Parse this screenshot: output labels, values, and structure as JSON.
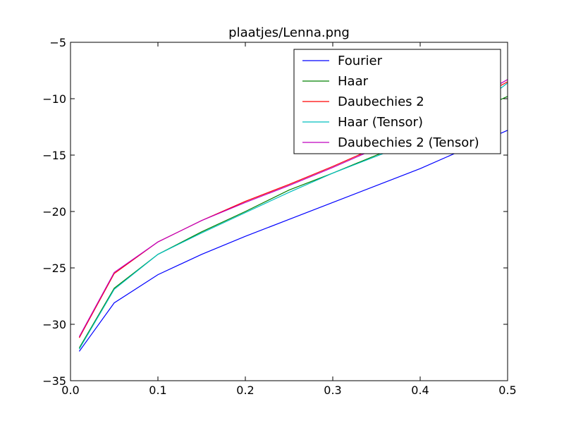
{
  "chart_data": {
    "type": "line",
    "title": "plaatjes/Lenna.png",
    "xlabel": "",
    "ylabel": "",
    "xlim": [
      0.0,
      0.5
    ],
    "ylim": [
      -35,
      -5
    ],
    "xticks": [
      0.0,
      0.1,
      0.2,
      0.3,
      0.4,
      0.5
    ],
    "xtick_labels": [
      "0.0",
      "0.1",
      "0.2",
      "0.3",
      "0.4",
      "0.5"
    ],
    "yticks": [
      -35,
      -30,
      -25,
      -20,
      -15,
      -10,
      -5
    ],
    "ytick_labels": [
      "−35",
      "−30",
      "−25",
      "−20",
      "−15",
      "−10",
      "−5"
    ],
    "grid": false,
    "legend_position": "top-right",
    "x": [
      0.01,
      0.05,
      0.1,
      0.15,
      0.2,
      0.25,
      0.3,
      0.35,
      0.4,
      0.45,
      0.5
    ],
    "series": [
      {
        "name": "Fourier",
        "color": "#0000ff",
        "values": [
          -32.4,
          -28.1,
          -25.6,
          -23.8,
          -22.2,
          -20.7,
          -19.2,
          -17.7,
          -16.2,
          -14.5,
          -12.8
        ]
      },
      {
        "name": "Haar",
        "color": "#008000",
        "values": [
          -32.1,
          -26.8,
          -23.8,
          -21.8,
          -20.0,
          -18.1,
          -16.6,
          -15.0,
          -13.5,
          -11.5,
          -9.8
        ]
      },
      {
        "name": "Daubechies 2",
        "color": "#ff0000",
        "values": [
          -31.2,
          -25.5,
          -22.7,
          -20.8,
          -19.1,
          -17.6,
          -16.0,
          -14.3,
          -12.6,
          -10.6,
          -8.5
        ]
      },
      {
        "name": "Haar (Tensor)",
        "color": "#00bfbf",
        "values": [
          -32.2,
          -26.9,
          -23.8,
          -21.9,
          -20.1,
          -18.3,
          -16.6,
          -15.1,
          -13.6,
          -11.6,
          -8.6
        ]
      },
      {
        "name": "Daubechies 2 (Tensor)",
        "color": "#bf00bf",
        "values": [
          -31.1,
          -25.4,
          -22.7,
          -20.8,
          -19.2,
          -17.7,
          -16.1,
          -14.4,
          -12.7,
          -10.5,
          -8.3
        ]
      }
    ]
  }
}
